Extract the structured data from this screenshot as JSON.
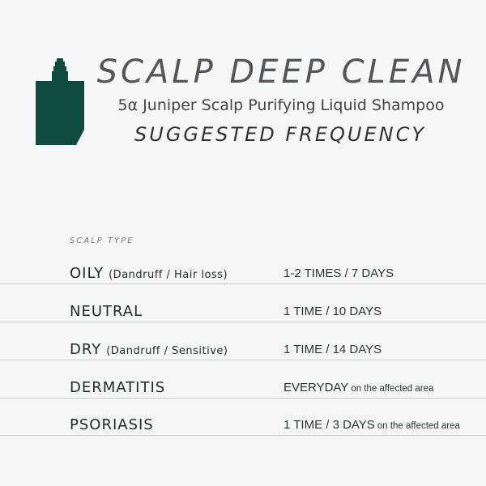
{
  "header": {
    "title": "SCALP DEEP CLEAN",
    "product": "5α Juniper Scalp Purifying Liquid Shampoo",
    "subtitle": "SUGGESTED FREQUENCY",
    "icon": "bottle-icon",
    "brand_color": "#0e4a3e"
  },
  "table": {
    "header": "SCALP TYPE",
    "rows": [
      {
        "type": "OILY",
        "note": "(Dandruff / Hair loss)",
        "frequency": "1-2 TIMES / 7 DAYS",
        "freq_note": ""
      },
      {
        "type": "NEUTRAL",
        "note": "",
        "frequency": "1 TIME / 10 DAYS",
        "freq_note": ""
      },
      {
        "type": "DRY",
        "note": "(Dandruff / Sensitive)",
        "frequency": "1 TIME / 14 DAYS",
        "freq_note": ""
      },
      {
        "type": "DERMATITIS",
        "note": "",
        "frequency": "EVERYDAY",
        "freq_note": "on the affected area"
      },
      {
        "type": "PSORIASIS",
        "note": "",
        "frequency": "1 TIME / 3 DAYS",
        "freq_note": "on the affected area"
      }
    ]
  }
}
